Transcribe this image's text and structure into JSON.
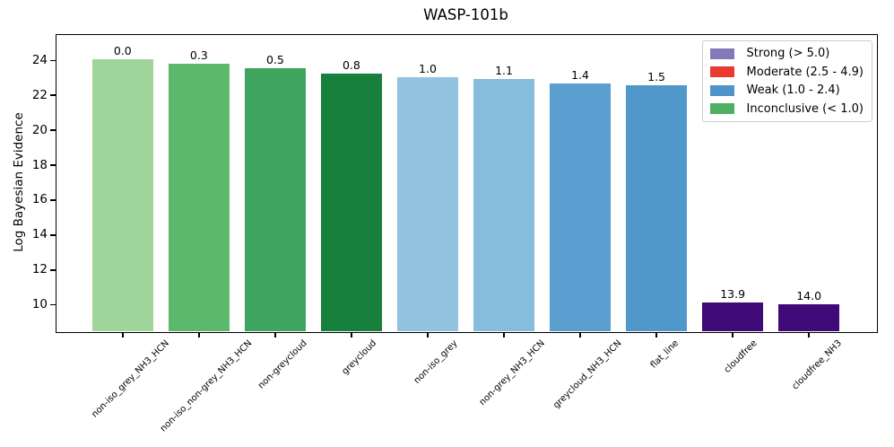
{
  "chart_data": {
    "type": "bar",
    "title": "WASP-101b",
    "xlabel": "",
    "ylabel": "Log Bayesian Evidence",
    "categories": [
      "non-iso_grey_NH3_HCN",
      "non-iso_non-grey_NH3_HCN",
      "non-greycloud",
      "greycloud",
      "non-iso_grey",
      "non-grey_NH3_HCN",
      "greycloud_NH3_HCN",
      "flat_line",
      "cloudfree",
      "cloudfree_NH3"
    ],
    "values": [
      24.05,
      23.8,
      23.55,
      23.25,
      23.05,
      22.95,
      22.65,
      22.55,
      10.15,
      10.05
    ],
    "bar_labels": [
      "0.0",
      "0.3",
      "0.5",
      "0.8",
      "1.0",
      "1.1",
      "1.4",
      "1.5",
      "13.9",
      "14.0"
    ],
    "bar_colors": [
      "#9fd49a",
      "#5cb96c",
      "#3fa45d",
      "#17803d",
      "#92c4e0",
      "#86bddc",
      "#5b9fd0",
      "#5198ca",
      "#400978",
      "#400978"
    ],
    "yticks": [
      10,
      12,
      14,
      16,
      18,
      20,
      22,
      24
    ],
    "ylim": [
      8.5,
      25.5
    ],
    "grid": false,
    "legend": {
      "position": "upper right",
      "entries": [
        {
          "label": "Strong (> 5.0)",
          "color": "#8679b9"
        },
        {
          "label": "Moderate (2.5 - 4.9)",
          "color": "#e93a2e"
        },
        {
          "label": "Weak (1.0 - 2.4)",
          "color": "#4f94c8"
        },
        {
          "label": "Inconclusive (< 1.0)",
          "color": "#4daf62"
        }
      ]
    }
  }
}
